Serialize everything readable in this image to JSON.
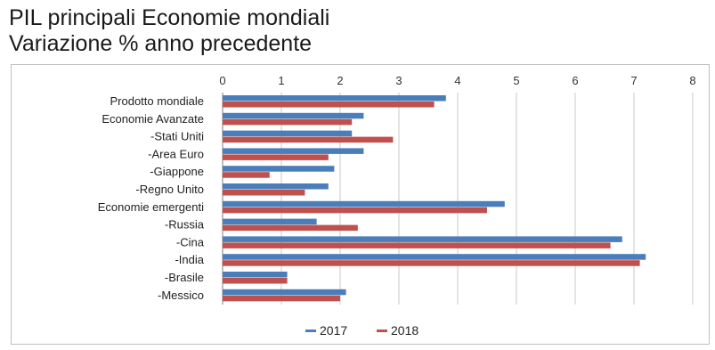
{
  "title": "PIL principali Economie mondiali",
  "subtitle": "Variazione % anno precedente",
  "chart_data": {
    "type": "bar",
    "orientation": "horizontal",
    "categories": [
      "Prodotto mondiale",
      "Economie Avanzate",
      "-Stati Uniti",
      "-Area Euro",
      "-Giappone",
      "-Regno Unito",
      "Economie emergenti",
      "-Russia",
      "-Cina",
      "-India",
      "-Brasile",
      "-Messico"
    ],
    "series": [
      {
        "name": "2017",
        "color": "#4a7ebb",
        "values": [
          3.8,
          2.4,
          2.2,
          2.4,
          1.9,
          1.8,
          4.8,
          1.6,
          6.8,
          7.2,
          1.1,
          2.1
        ]
      },
      {
        "name": "2018",
        "color": "#c0504d",
        "values": [
          3.6,
          2.2,
          2.9,
          1.8,
          0.8,
          1.4,
          4.5,
          2.3,
          6.6,
          7.1,
          1.1,
          2.0
        ]
      }
    ],
    "xlim": [
      0,
      8
    ],
    "ticks": [
      "0",
      "1",
      "2",
      "3",
      "4",
      "5",
      "6",
      "7",
      "8"
    ],
    "grid": true,
    "legend_position": "bottom"
  }
}
